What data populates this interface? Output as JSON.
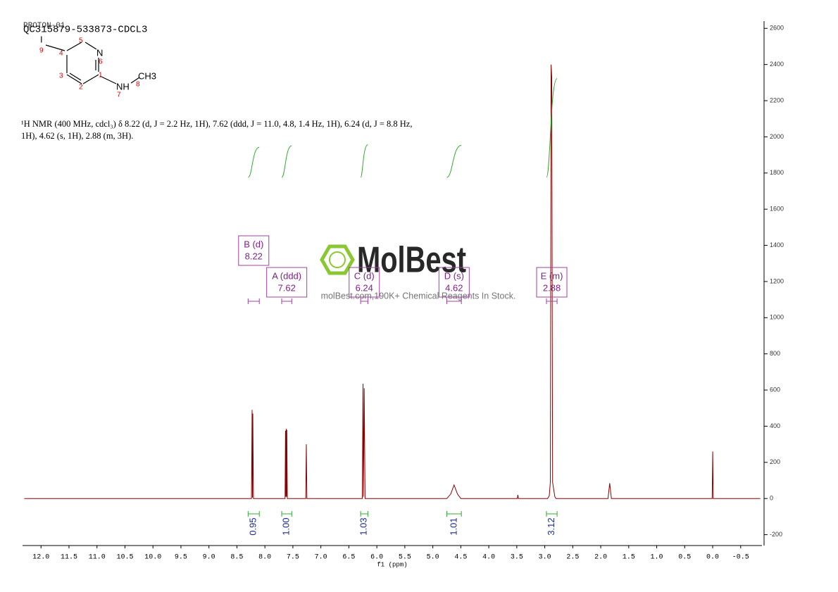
{
  "header": {
    "title": "QC315879-533873-CDCL3",
    "overlay": "PROTON-01"
  },
  "structure": {
    "labels": [
      "I",
      "N",
      "NH",
      "CH3"
    ],
    "locants": [
      "9",
      "5",
      "4",
      "6",
      "1",
      "3",
      "2",
      "7",
      "8"
    ]
  },
  "nmr_text": "¹H NMR (400 MHz, cdcl₃) δ 8.22 (d, J = 2.2 Hz, 1H), 7.62 (ddd, J = 11.0, 4.8, 1.4 Hz, 1H), 6.24 (d, J = 8.8 Hz, 1H), 4.62 (s, 1H), 2.88 (m, 3H).",
  "watermark": {
    "logo": "MolBest",
    "text": "molBest.com,190K+ Chemical Reagents In Stock."
  },
  "chart_data": {
    "type": "line",
    "color": "#8b0000",
    "xlabel": "f1 (ppm)",
    "x": [
      12.3,
      8.24,
      8.228,
      8.222,
      8.216,
      8.205,
      7.64,
      7.632,
      7.626,
      7.62,
      7.614,
      7.608,
      7.6,
      7.27,
      7.26,
      7.25,
      6.26,
      6.247,
      6.24,
      6.226,
      6.21,
      4.75,
      4.68,
      4.62,
      4.56,
      4.5,
      3.49,
      3.48,
      3.47,
      2.95,
      2.92,
      2.9,
      2.887,
      2.875,
      2.86,
      2.82,
      2.8,
      1.87,
      1.84,
      1.81,
      0.01,
      0.0,
      -0.01,
      -0.85
    ],
    "values": [
      0,
      0,
      490,
      5,
      470,
      0,
      0,
      375,
      10,
      385,
      10,
      380,
      0,
      0,
      300,
      0,
      0,
      635,
      10,
      610,
      0,
      0,
      25,
      75,
      25,
      0,
      0,
      20,
      0,
      0,
      15,
      90,
      2400,
      2330,
      90,
      10,
      0,
      0,
      85,
      0,
      0,
      260,
      0,
      0
    ],
    "xlim": [
      12.33,
      -0.88
    ],
    "ylim": [
      -260,
      2640
    ],
    "xticks": [
      {
        "value": 12,
        "label": "12.0"
      },
      11.5,
      {
        "value": 11,
        "label": "11.0"
      },
      10.5,
      {
        "value": 10,
        "label": "10.0"
      },
      9.5,
      {
        "value": 9,
        "label": "9.0"
      },
      8.5,
      {
        "value": 8,
        "label": "8.0"
      },
      7.5,
      {
        "value": 7,
        "label": "7.0"
      },
      6.5,
      {
        "value": 6,
        "label": "6.0"
      },
      5.5,
      {
        "value": 5,
        "label": "5.0"
      },
      4.5,
      {
        "value": 4,
        "label": "4.0"
      },
      3.5,
      {
        "value": 3,
        "label": "3.0"
      },
      2.5,
      {
        "value": 2,
        "label": "2.0"
      },
      1.5,
      {
        "value": 1,
        "label": "1.0"
      },
      0.5,
      {
        "value": 0,
        "label": "0.0"
      },
      -0.5
    ],
    "yticks": [
      2600,
      2400,
      2200,
      2000,
      1800,
      1600,
      1400,
      1200,
      1000,
      800,
      600,
      400,
      200,
      0,
      -200
    ],
    "multiplets": [
      {
        "name": "B (d)",
        "shift": "8.22",
        "range": [
          8.3,
          8.1
        ]
      },
      {
        "name": "A (ddd)",
        "shift": "7.62",
        "range": [
          7.7,
          7.52
        ]
      },
      {
        "name": "C (d)",
        "shift": "6.24",
        "range": [
          6.29,
          6.16
        ]
      },
      {
        "name": "D (s)",
        "shift": "4.62",
        "range": [
          4.75,
          4.49
        ]
      },
      {
        "name": "E (m)",
        "shift": "2.88",
        "range": [
          2.97,
          2.78
        ]
      }
    ],
    "integrals": [
      {
        "label": "0.95",
        "range": [
          8.3,
          8.1
        ]
      },
      {
        "label": "1.00",
        "range": [
          7.7,
          7.52
        ]
      },
      {
        "label": "1.03",
        "range": [
          6.29,
          6.16
        ]
      },
      {
        "label": "1.01",
        "range": [
          4.75,
          4.49
        ]
      },
      {
        "label": "3.12",
        "range": [
          2.97,
          2.78
        ]
      }
    ]
  }
}
